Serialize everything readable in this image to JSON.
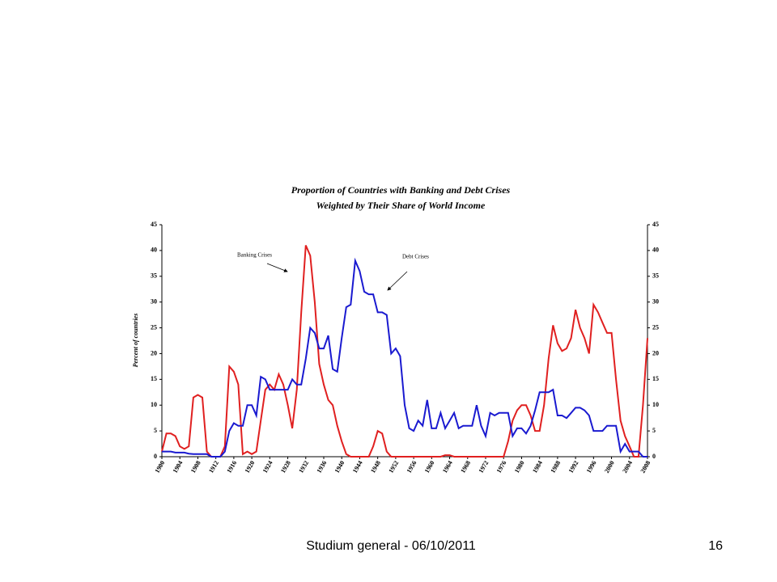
{
  "chart_data": {
    "type": "line",
    "title": "Proportion of Countries with Banking and Debt Crises",
    "subtitle": "Weighted by Their Share of World Income",
    "y_label": "Percent of countries",
    "annotations": [
      "Banking Crises",
      "Debt Crises"
    ],
    "x": [
      1900,
      1901,
      1902,
      1903,
      1904,
      1905,
      1906,
      1907,
      1908,
      1909,
      1910,
      1911,
      1912,
      1913,
      1914,
      1915,
      1916,
      1917,
      1918,
      1919,
      1920,
      1921,
      1922,
      1923,
      1924,
      1925,
      1926,
      1927,
      1928,
      1929,
      1930,
      1931,
      1932,
      1933,
      1934,
      1935,
      1936,
      1937,
      1938,
      1939,
      1940,
      1941,
      1942,
      1943,
      1944,
      1945,
      1946,
      1947,
      1948,
      1949,
      1950,
      1951,
      1952,
      1953,
      1954,
      1955,
      1956,
      1957,
      1958,
      1959,
      1960,
      1961,
      1962,
      1963,
      1964,
      1965,
      1966,
      1967,
      1968,
      1969,
      1970,
      1971,
      1972,
      1973,
      1974,
      1975,
      1976,
      1977,
      1978,
      1979,
      1980,
      1981,
      1982,
      1983,
      1984,
      1985,
      1986,
      1987,
      1988,
      1989,
      1990,
      1991,
      1992,
      1993,
      1994,
      1995,
      1996,
      1997,
      1998,
      1999,
      2000,
      2001,
      2002,
      2003,
      2004,
      2005,
      2006,
      2007,
      2008
    ],
    "series": [
      {
        "color": "#e02020",
        "values": [
          1,
          4.5,
          4.5,
          4,
          2,
          1.5,
          2,
          11.5,
          12,
          11.5,
          1,
          0,
          0,
          0,
          2,
          17.5,
          16.5,
          14,
          0.5,
          1,
          0.5,
          1,
          7,
          13,
          14,
          13,
          16,
          14,
          10,
          5.5,
          13,
          28,
          41,
          39,
          30,
          18,
          14,
          11,
          10,
          6,
          3,
          0.5,
          0,
          0,
          0,
          0,
          0,
          2,
          5,
          4.5,
          1,
          0,
          0,
          0,
          0,
          0,
          0,
          0,
          0,
          0,
          0,
          0,
          0,
          0.3,
          0.3,
          0,
          0,
          0,
          0,
          0,
          0,
          0,
          0,
          0,
          0,
          0,
          0,
          3,
          7,
          9,
          10,
          10,
          8,
          5,
          5,
          10,
          19,
          25.5,
          22,
          20.5,
          21,
          23,
          28.5,
          25,
          23,
          20,
          29.5,
          28,
          26,
          24,
          24,
          15,
          7,
          4,
          2,
          0,
          0,
          10,
          23
        ]
      },
      {
        "color": "#1a1ad0",
        "values": [
          1,
          1,
          1,
          0.8,
          0.8,
          0.8,
          0.6,
          0.5,
          0.5,
          0.5,
          0.5,
          0,
          0,
          0,
          1,
          5,
          6.5,
          6,
          6,
          10,
          10,
          8,
          15.5,
          15,
          13,
          13,
          13,
          13,
          13,
          15,
          14,
          14,
          19,
          25,
          24,
          21,
          21,
          23.5,
          17,
          16.5,
          23,
          29,
          29.5,
          38,
          36,
          32,
          31.5,
          31.5,
          28,
          28,
          27.5,
          20,
          21,
          19.5,
          10,
          5.5,
          5,
          7,
          6,
          11,
          5.5,
          5.5,
          8.5,
          5.5,
          7,
          8.5,
          5.5,
          6,
          6,
          6,
          10,
          6,
          4,
          8.5,
          8,
          8.5,
          8.5,
          8.5,
          4,
          5.5,
          5.5,
          4.5,
          6,
          9,
          12.5,
          12.5,
          12.5,
          13,
          8,
          8,
          7.5,
          8.5,
          9.5,
          9.5,
          9,
          8,
          5,
          5,
          5,
          6,
          6,
          6,
          1,
          2.5,
          1,
          1,
          1,
          0,
          0
        ]
      }
    ],
    "xlim": [
      1900,
      2008
    ],
    "xticks": [
      1900,
      1904,
      1908,
      1912,
      1916,
      1920,
      1924,
      1928,
      1932,
      1936,
      1940,
      1944,
      1948,
      1952,
      1956,
      1960,
      1964,
      1968,
      1972,
      1976,
      1980,
      1984,
      1988,
      1992,
      1996,
      2000,
      2004,
      2008
    ],
    "ylim": [
      0,
      45
    ],
    "yticks": [
      0,
      5,
      10,
      15,
      20,
      25,
      30,
      35,
      40,
      45
    ],
    "y2lim": [
      0,
      45
    ],
    "y2ticks": [
      0,
      5,
      10,
      15,
      20,
      25,
      30,
      35,
      40,
      45
    ]
  },
  "footer": {
    "text": "Studium general - 06/10/2011",
    "page": "16"
  }
}
